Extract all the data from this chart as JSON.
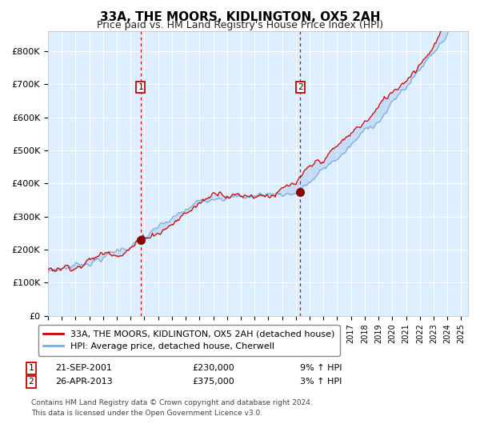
{
  "title": "33A, THE MOORS, KIDLINGTON, OX5 2AH",
  "subtitle": "Price paid vs. HM Land Registry's House Price Index (HPI)",
  "y_ticks": [
    0,
    100000,
    200000,
    300000,
    400000,
    500000,
    600000,
    700000,
    800000
  ],
  "y_tick_labels": [
    "£0",
    "£100K",
    "£200K",
    "£300K",
    "£400K",
    "£500K",
    "£600K",
    "£700K",
    "£800K"
  ],
  "red_line_color": "#cc0000",
  "blue_line_color": "#7aaadd",
  "background_color": "#ddeeff",
  "grid_color": "#ffffff",
  "vline_color": "#cc0000",
  "marker_color": "#880000",
  "annotation1": {
    "label": "1",
    "year": 2001.72,
    "price": 230000,
    "date": "21-SEP-2001",
    "pct": "9% ↑ HPI"
  },
  "annotation2": {
    "label": "2",
    "year": 2013.32,
    "price": 375000,
    "date": "26-APR-2013",
    "pct": "3% ↑ HPI"
  },
  "legend_line1": "33A, THE MOORS, KIDLINGTON, OX5 2AH (detached house)",
  "legend_line2": "HPI: Average price, detached house, Cherwell",
  "footer1": "Contains HM Land Registry data © Crown copyright and database right 2024.",
  "footer2": "This data is licensed under the Open Government Licence v3.0.",
  "box_color": "#cc0000"
}
